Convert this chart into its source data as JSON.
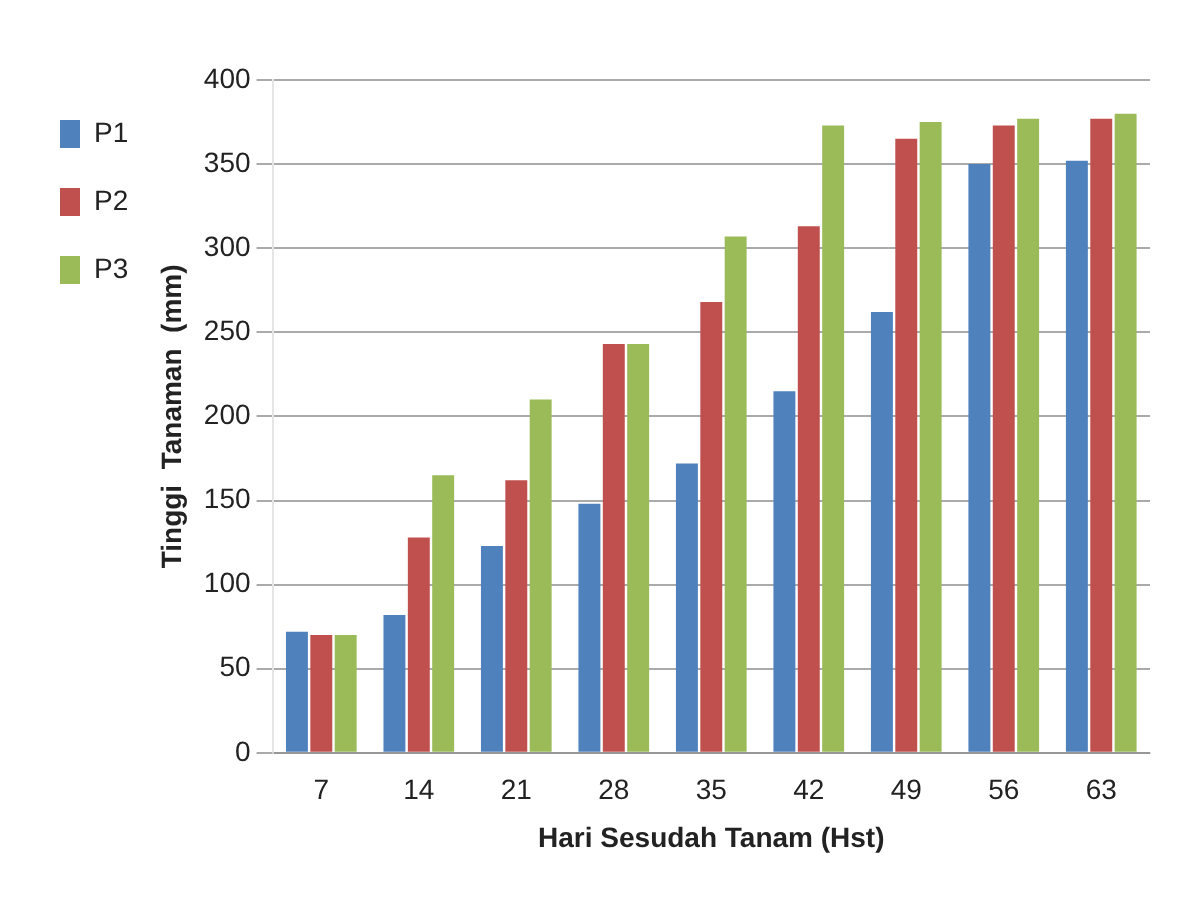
{
  "chart_data": {
    "type": "bar",
    "xlabel": "Hari Sesudah Tanam (Hst)",
    "ylabel": "Tinggi  Tanaman  (mm)",
    "categories": [
      "7",
      "14",
      "21",
      "28",
      "35",
      "42",
      "49",
      "56",
      "63"
    ],
    "series": [
      {
        "name": "P1",
        "color": "#4f81bd",
        "values": [
          72,
          82,
          123,
          148,
          172,
          215,
          262,
          350,
          352
        ]
      },
      {
        "name": "P2",
        "color": "#c0504d",
        "values": [
          70,
          128,
          162,
          243,
          268,
          313,
          365,
          373,
          377
        ]
      },
      {
        "name": "P3",
        "color": "#9bbb59",
        "values": [
          70,
          165,
          210,
          243,
          307,
          373,
          375,
          377,
          380
        ]
      }
    ],
    "ylim": [
      0,
      400
    ],
    "yticks": [
      0,
      50,
      100,
      150,
      200,
      250,
      300,
      350,
      400
    ],
    "grid": "y",
    "legend": "top left"
  }
}
